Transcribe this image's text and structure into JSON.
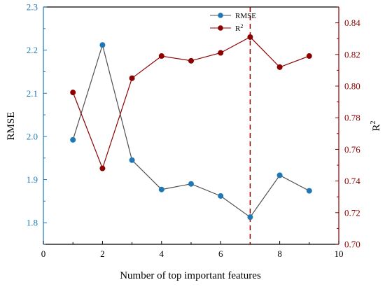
{
  "chart_data": {
    "type": "line",
    "xlabel": "Number of top important features",
    "ylabel_left": "RMSE",
    "ylabel_right": "R",
    "ylabel_right_sup": "2",
    "xlim": [
      0,
      10
    ],
    "ylim_left": [
      1.75,
      2.3
    ],
    "ylim_right": [
      0.7,
      0.85
    ],
    "x_ticks": [
      0,
      2,
      4,
      6,
      8,
      10
    ],
    "y_left_ticks": [
      "1.8",
      "1.9",
      "2.0",
      "2.1",
      "2.2",
      "2.3"
    ],
    "y_right_ticks": [
      "0.70",
      "0.72",
      "0.74",
      "0.76",
      "0.78",
      "0.80",
      "0.82",
      "0.84"
    ],
    "grid": false,
    "legend_position": "top-right",
    "x": [
      1,
      2,
      3,
      4,
      5,
      6,
      7,
      8,
      9
    ],
    "series": [
      {
        "name": "RMSE",
        "axis": "left",
        "line_color": "#505050",
        "marker_color": "#1f78b4",
        "values": [
          1.992,
          2.212,
          1.945,
          1.877,
          1.89,
          1.862,
          1.813,
          1.91,
          1.874
        ]
      },
      {
        "name": "R",
        "name_sup": "2",
        "axis": "right",
        "line_color": "#8b0000",
        "marker_color": "#8b0000",
        "values": [
          0.796,
          0.748,
          0.805,
          0.819,
          0.816,
          0.821,
          0.831,
          0.812,
          0.819
        ]
      }
    ],
    "marker_line_x": 7,
    "colors": {
      "left_axis": "#1f78b4",
      "right_axis": "#8b0000",
      "axis_frame": "#000000"
    }
  }
}
